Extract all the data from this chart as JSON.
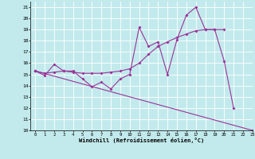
{
  "xlabel": "Windchill (Refroidissement éolien,°C)",
  "xlim": [
    -0.5,
    23
  ],
  "ylim": [
    10,
    21.5
  ],
  "yticks": [
    10,
    11,
    12,
    13,
    14,
    15,
    16,
    17,
    18,
    19,
    20,
    21
  ],
  "xticks": [
    0,
    1,
    2,
    3,
    4,
    5,
    6,
    7,
    8,
    9,
    10,
    11,
    12,
    13,
    14,
    15,
    16,
    17,
    18,
    19,
    20,
    21,
    22,
    23
  ],
  "bg_color": "#c2eaec",
  "grid_color": "#ffffff",
  "line_color": "#993399",
  "line1_x": [
    0,
    1,
    2,
    3,
    4,
    5,
    6,
    7,
    8,
    9,
    10,
    11,
    12,
    13,
    14,
    15,
    16,
    17,
    18,
    19,
    20,
    21
  ],
  "line1_y": [
    15.3,
    14.9,
    15.9,
    15.3,
    15.3,
    14.6,
    13.9,
    14.3,
    13.7,
    14.6,
    15.0,
    19.2,
    17.5,
    17.9,
    15.0,
    18.1,
    20.3,
    21.0,
    19.0,
    19.0,
    16.2,
    12.0
  ],
  "line2_x": [
    0,
    1,
    2,
    3,
    4,
    5,
    6,
    7,
    8,
    9,
    10,
    11,
    12,
    13,
    14,
    15,
    16,
    17,
    18,
    19,
    20
  ],
  "line2_y": [
    15.3,
    15.1,
    15.2,
    15.3,
    15.2,
    15.1,
    15.1,
    15.1,
    15.2,
    15.3,
    15.5,
    16.0,
    16.8,
    17.5,
    17.9,
    18.3,
    18.6,
    18.9,
    19.0,
    19.0,
    19.0
  ],
  "line3_x": [
    0,
    23
  ],
  "line3_y": [
    15.3,
    10.0
  ]
}
